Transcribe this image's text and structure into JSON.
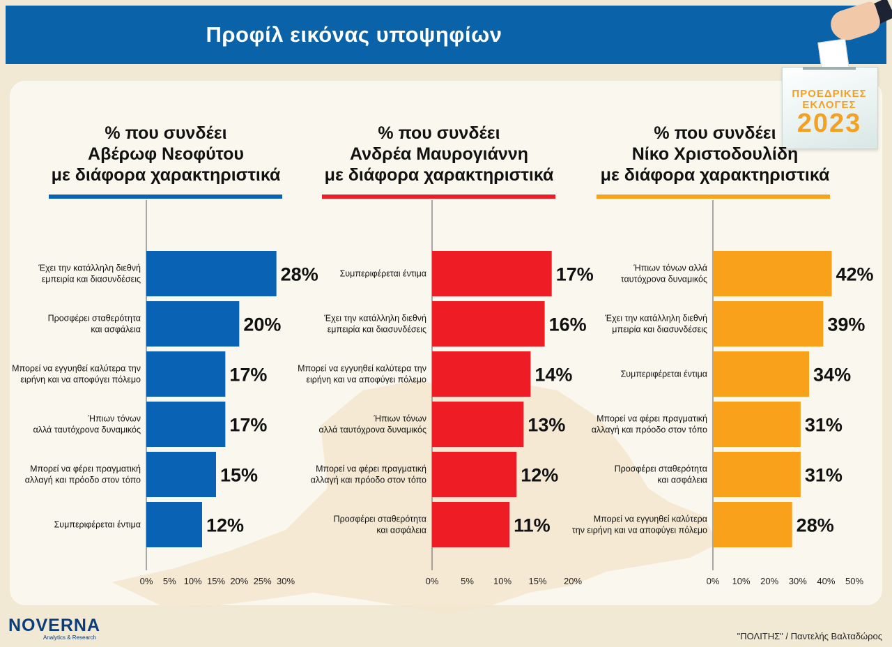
{
  "header": {
    "title": "Προφίλ εικόνας υποψηφίων"
  },
  "badge": {
    "line1": "ΠΡΟΕΔΡΙΚΕΣ",
    "line2": "ΕΚΛΟΓΕΣ",
    "year": "2023"
  },
  "colors": {
    "header_bg": "#0a62a8",
    "panel1": "#0a62b5",
    "panel2": "#ee1c24",
    "panel3": "#f9a11b",
    "background": "#f1e9d3"
  },
  "panels": [
    {
      "title_lines": [
        "% που συνδέει",
        "Αβέρωφ Νεοφύτου",
        "με διάφορα χαρακτηριστικά"
      ]
    },
    {
      "title_lines": [
        "% που συνδέει",
        "Ανδρέα Μαυρογιάννη",
        "με διάφορα χαρακτηριστικά"
      ]
    },
    {
      "title_lines": [
        "% που συνδέει",
        "Νίκο Χριστοδουλίδη",
        "με διάφορα χαρακτηριστικά"
      ]
    }
  ],
  "chart_data": [
    {
      "type": "bar",
      "orientation": "horizontal",
      "color": "#0a62b5",
      "categories": [
        [
          "Έχει την κατάλληλη διεθνή",
          "εμπειρία και διασυνδέσεις"
        ],
        [
          "Προσφέρει σταθερότητα",
          "και ασφάλεια"
        ],
        [
          "Μπορεί να εγγυηθεί καλύτερα την",
          "ειρήνη και να αποφύγει πόλεμο"
        ],
        [
          "Ήπιων τόνων",
          "αλλά ταυτόχρονα δυναμικός"
        ],
        [
          "Μπορεί να φέρει πραγματική",
          "αλλαγή και πρόοδο στον τόπο"
        ],
        [
          "Συμπεριφέρεται έντιμα"
        ]
      ],
      "values": [
        28,
        20,
        17,
        17,
        15,
        12
      ],
      "value_labels": [
        "28%",
        "20%",
        "17%",
        "17%",
        "15%",
        "12%"
      ],
      "xlim": [
        0,
        30
      ],
      "ticks": [
        0,
        5,
        10,
        15,
        20,
        25,
        30
      ],
      "tick_labels": [
        "0%",
        "5%",
        "10%",
        "15%",
        "20%",
        "25%",
        "30%"
      ]
    },
    {
      "type": "bar",
      "orientation": "horizontal",
      "color": "#ee1c24",
      "categories": [
        [
          "Συμπεριφέρεται έντιμα"
        ],
        [
          "Έχει την κατάλληλη διεθνή",
          "εμπειρία και διασυνδέσεις"
        ],
        [
          "Μπορεί να εγγυηθεί καλύτερα την",
          "ειρήνη και να αποφύγει πόλεμο"
        ],
        [
          "Ήπιων τόνων",
          "αλλά ταυτόχρονα δυναμικός"
        ],
        [
          "Μπορεί να φέρει πραγματική",
          "αλλαγή και πρόοδο στον τόπο"
        ],
        [
          "Προσφέρει σταθερότητα",
          "και ασφάλεια"
        ]
      ],
      "values": [
        17,
        16,
        14,
        13,
        12,
        11
      ],
      "value_labels": [
        "17%",
        "16%",
        "14%",
        "13%",
        "12%",
        "11%"
      ],
      "xlim": [
        0,
        20
      ],
      "ticks": [
        0,
        5,
        10,
        15,
        20
      ],
      "tick_labels": [
        "0%",
        "5%",
        "10%",
        "15%",
        "20%"
      ]
    },
    {
      "type": "bar",
      "orientation": "horizontal",
      "color": "#f9a11b",
      "categories": [
        [
          "Ήπιων τόνων αλλά",
          "ταυτόχρονα δυναμικός"
        ],
        [
          "Έχει την κατάλληλη διεθνή",
          "μπειρία και διασυνδέσεις"
        ],
        [
          "Συμπεριφέρεται έντιμα"
        ],
        [
          "Μπορεί να φέρει πραγματική",
          "αλλαγή και πρόοδο στον τόπο"
        ],
        [
          "Προσφέρει σταθερότητα",
          "και ασφάλεια"
        ],
        [
          "Μπορεί να εγγυηθεί καλύτερα",
          "την ειρήνη και να αποφύγει πόλεμο"
        ]
      ],
      "values": [
        42,
        39,
        34,
        31,
        31,
        28
      ],
      "value_labels": [
        "42%",
        "39%",
        "34%",
        "31%",
        "31%",
        "28%"
      ],
      "xlim": [
        0,
        50
      ],
      "ticks": [
        0,
        10,
        20,
        30,
        40,
        50
      ],
      "tick_labels": [
        "0%",
        "10%",
        "20%",
        "30%",
        "40%",
        "50%"
      ]
    }
  ],
  "footer": {
    "logo_text": "NOVERNA",
    "logo_subtext": "Analytics & Research",
    "credit": "\"ΠΟΛΙΤΗΣ\" / Παντελής Βαλταδώρος"
  }
}
